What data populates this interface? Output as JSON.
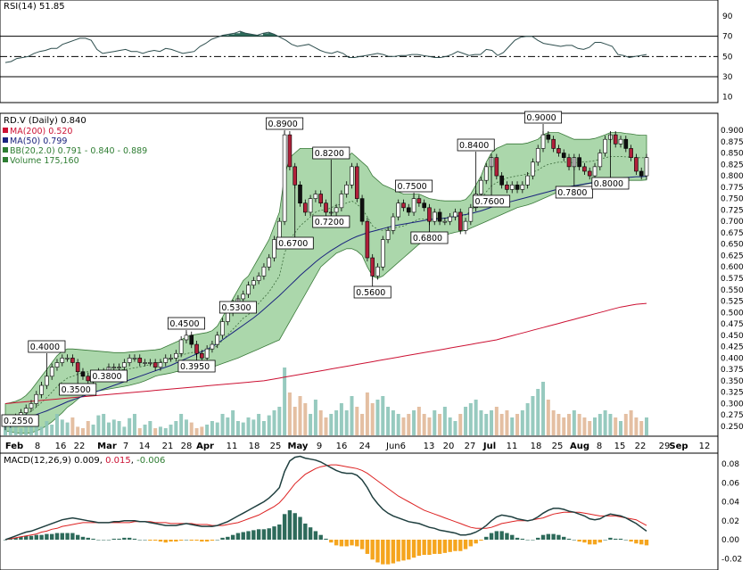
{
  "rsi_panel": {
    "label": "RSI(14)",
    "value": "51.85",
    "ticks": [
      90,
      70,
      50,
      30,
      10
    ],
    "series": [
      44,
      45,
      48,
      49,
      50,
      53,
      55,
      56,
      58,
      58,
      62,
      64,
      66,
      68,
      68,
      66,
      57,
      53,
      54,
      55,
      56,
      57,
      55,
      55,
      53,
      55,
      56,
      55,
      58,
      57,
      55,
      53,
      54,
      55,
      60,
      63,
      67,
      69,
      71,
      72,
      73,
      75,
      73,
      72,
      71,
      73,
      74,
      72,
      69,
      66,
      62,
      60,
      61,
      62,
      59,
      56,
      54,
      53,
      55,
      53,
      49,
      49,
      50,
      51,
      52,
      53,
      52,
      50,
      50,
      51,
      51,
      52,
      52,
      51,
      50,
      49,
      49,
      50,
      52,
      55,
      53,
      51,
      52,
      52,
      57,
      56,
      51,
      54,
      60,
      66,
      69,
      70,
      70,
      66,
      63,
      62,
      61,
      60,
      61,
      61,
      58,
      57,
      59,
      64,
      64,
      62,
      60,
      52,
      51,
      49,
      50,
      51,
      52
    ]
  },
  "price_panel": {
    "symbol_label": "RD.V (Daily)",
    "last": "0.840",
    "legend": [
      {
        "name": "MA(200)",
        "value": "0.520",
        "color": "#cc1133"
      },
      {
        "name": "MA(50)",
        "value": "0.799",
        "color": "#1a237e"
      },
      {
        "name": "BB(20,2.0)",
        "value": "0.791 - 0.840 - 0.889",
        "color": "#2e7d32"
      },
      {
        "name": "Volume",
        "value": "175,160",
        "color": "#2e7d32"
      }
    ],
    "ticks": [
      "0.900",
      "0.875",
      "0.850",
      "0.825",
      "0.800",
      "0.775",
      "0.750",
      "0.725",
      "0.700",
      "0.675",
      "0.650",
      "0.625",
      "0.600",
      "0.575",
      "0.550",
      "0.525",
      "0.500",
      "0.475",
      "0.450",
      "0.425",
      "0.400",
      "0.375",
      "0.350",
      "0.325",
      "0.300",
      "0.275",
      "0.250"
    ],
    "annotations": [
      "0.2550",
      "0.4000",
      "0.3500",
      "0.3800",
      "0.4500",
      "0.3950",
      "0.5300",
      "0.8900",
      "0.6700",
      "0.8200",
      "0.7200",
      "0.5600",
      "0.7500",
      "0.6800",
      "0.8400",
      "0.7600",
      "0.9000",
      "0.7800",
      "0.8000"
    ]
  },
  "x_axis": {
    "labels": [
      "Feb",
      "8",
      "16",
      "22",
      "Mar",
      "7",
      "14",
      "21",
      "28",
      "Apr",
      "11",
      "18",
      "25",
      "May",
      "9",
      "16",
      "24",
      "Jun6",
      "13",
      "20",
      "27",
      "Jul",
      "11",
      "18",
      "25",
      "Aug",
      "8",
      "15",
      "22",
      "29",
      "Sep",
      "12"
    ]
  },
  "macd_panel": {
    "label": "MACD(12,26,9)",
    "values": [
      "0.009",
      "0.015",
      "-0.006"
    ],
    "ticks": [
      "0.08",
      "0.06",
      "0.04",
      "0.02",
      "0.00",
      "-0.02"
    ]
  },
  "chart_data": {
    "type": "line",
    "ylim": [
      0.24,
      0.92
    ],
    "close": [
      0.255,
      0.26,
      0.27,
      0.28,
      0.29,
      0.3,
      0.32,
      0.34,
      0.36,
      0.38,
      0.39,
      0.4,
      0.4,
      0.39,
      0.37,
      0.36,
      0.35,
      0.36,
      0.37,
      0.37,
      0.38,
      0.38,
      0.38,
      0.39,
      0.4,
      0.4,
      0.39,
      0.39,
      0.39,
      0.38,
      0.39,
      0.4,
      0.4,
      0.41,
      0.44,
      0.45,
      0.43,
      0.41,
      0.4,
      0.42,
      0.43,
      0.45,
      0.48,
      0.5,
      0.52,
      0.53,
      0.54,
      0.56,
      0.57,
      0.58,
      0.6,
      0.62,
      0.66,
      0.7,
      0.89,
      0.82,
      0.78,
      0.74,
      0.72,
      0.75,
      0.76,
      0.74,
      0.72,
      0.72,
      0.73,
      0.76,
      0.78,
      0.82,
      0.75,
      0.7,
      0.62,
      0.58,
      0.6,
      0.66,
      0.68,
      0.71,
      0.74,
      0.73,
      0.72,
      0.75,
      0.74,
      0.73,
      0.7,
      0.72,
      0.7,
      0.7,
      0.71,
      0.72,
      0.68,
      0.7,
      0.73,
      0.76,
      0.79,
      0.82,
      0.84,
      0.8,
      0.78,
      0.77,
      0.78,
      0.77,
      0.78,
      0.8,
      0.83,
      0.86,
      0.89,
      0.88,
      0.86,
      0.85,
      0.84,
      0.82,
      0.84,
      0.82,
      0.81,
      0.8,
      0.82,
      0.85,
      0.88,
      0.89,
      0.87,
      0.88,
      0.86,
      0.84,
      0.81,
      0.8,
      0.84
    ],
    "ma50": [
      0.26,
      0.262,
      0.264,
      0.267,
      0.27,
      0.273,
      0.276,
      0.28,
      0.284,
      0.289,
      0.294,
      0.299,
      0.304,
      0.308,
      0.312,
      0.316,
      0.32,
      0.324,
      0.328,
      0.332,
      0.336,
      0.34,
      0.344,
      0.348,
      0.352,
      0.356,
      0.36,
      0.364,
      0.368,
      0.372,
      0.376,
      0.38,
      0.384,
      0.389,
      0.394,
      0.399,
      0.404,
      0.409,
      0.414,
      0.419,
      0.425,
      0.432,
      0.44,
      0.448,
      0.456,
      0.464,
      0.472,
      0.48,
      0.488,
      0.497,
      0.507,
      0.517,
      0.527,
      0.537,
      0.548,
      0.559,
      0.57,
      0.581,
      0.591,
      0.601,
      0.611,
      0.62,
      0.628,
      0.636,
      0.643,
      0.65,
      0.656,
      0.662,
      0.667,
      0.671,
      0.675,
      0.678,
      0.681,
      0.684,
      0.687,
      0.69,
      0.692,
      0.694,
      0.696,
      0.698,
      0.7,
      0.702,
      0.704,
      0.705,
      0.706,
      0.707,
      0.709,
      0.711,
      0.713,
      0.715,
      0.717,
      0.72,
      0.723,
      0.727,
      0.731,
      0.735,
      0.738,
      0.741,
      0.744,
      0.747,
      0.75,
      0.753,
      0.756,
      0.759,
      0.762,
      0.765,
      0.768,
      0.771,
      0.774,
      0.776,
      0.778,
      0.78,
      0.782,
      0.784,
      0.786,
      0.788,
      0.79,
      0.792,
      0.794,
      0.795,
      0.796,
      0.797,
      0.798,
      0.798,
      0.799
    ],
    "ma200": [
      0.3,
      0.301,
      0.302,
      0.303,
      0.304,
      0.305,
      0.306,
      0.307,
      0.308,
      0.309,
      0.31,
      0.311,
      0.312,
      0.313,
      0.314,
      0.315,
      0.316,
      0.317,
      0.318,
      0.319,
      0.32,
      0.321,
      0.322,
      0.323,
      0.324,
      0.325,
      0.326,
      0.327,
      0.328,
      0.329,
      0.33,
      0.331,
      0.332,
      0.333,
      0.334,
      0.335,
      0.336,
      0.337,
      0.338,
      0.339,
      0.34,
      0.341,
      0.342,
      0.343,
      0.344,
      0.345,
      0.346,
      0.347,
      0.348,
      0.349,
      0.35,
      0.352,
      0.354,
      0.356,
      0.358,
      0.36,
      0.362,
      0.364,
      0.366,
      0.368,
      0.37,
      0.372,
      0.374,
      0.376,
      0.378,
      0.38,
      0.382,
      0.384,
      0.386,
      0.388,
      0.39,
      0.392,
      0.394,
      0.396,
      0.398,
      0.4,
      0.402,
      0.404,
      0.406,
      0.408,
      0.41,
      0.412,
      0.414,
      0.416,
      0.418,
      0.42,
      0.422,
      0.424,
      0.426,
      0.428,
      0.43,
      0.432,
      0.434,
      0.436,
      0.438,
      0.44,
      0.443,
      0.446,
      0.449,
      0.452,
      0.455,
      0.458,
      0.461,
      0.464,
      0.467,
      0.47,
      0.473,
      0.476,
      0.479,
      0.482,
      0.485,
      0.488,
      0.491,
      0.494,
      0.497,
      0.5,
      0.503,
      0.506,
      0.509,
      0.512,
      0.514,
      0.516,
      0.518,
      0.519,
      0.52
    ],
    "bb_upper": [
      0.3,
      0.302,
      0.305,
      0.31,
      0.318,
      0.33,
      0.345,
      0.36,
      0.375,
      0.39,
      0.405,
      0.415,
      0.42,
      0.42,
      0.419,
      0.418,
      0.417,
      0.416,
      0.415,
      0.414,
      0.413,
      0.412,
      0.412,
      0.412,
      0.413,
      0.414,
      0.415,
      0.416,
      0.417,
      0.418,
      0.42,
      0.425,
      0.43,
      0.435,
      0.44,
      0.446,
      0.45,
      0.452,
      0.454,
      0.456,
      0.46,
      0.47,
      0.49,
      0.51,
      0.53,
      0.55,
      0.57,
      0.58,
      0.6,
      0.62,
      0.64,
      0.66,
      0.69,
      0.72,
      0.8,
      0.84,
      0.85,
      0.86,
      0.86,
      0.86,
      0.86,
      0.85,
      0.84,
      0.84,
      0.84,
      0.84,
      0.84,
      0.85,
      0.84,
      0.83,
      0.82,
      0.8,
      0.79,
      0.78,
      0.775,
      0.77,
      0.765,
      0.76,
      0.76,
      0.76,
      0.76,
      0.755,
      0.75,
      0.748,
      0.746,
      0.745,
      0.745,
      0.745,
      0.745,
      0.748,
      0.76,
      0.78,
      0.8,
      0.83,
      0.85,
      0.86,
      0.865,
      0.87,
      0.87,
      0.87,
      0.87,
      0.872,
      0.876,
      0.88,
      0.89,
      0.895,
      0.895,
      0.895,
      0.89,
      0.885,
      0.88,
      0.88,
      0.88,
      0.88,
      0.882,
      0.886,
      0.89,
      0.895,
      0.895,
      0.895,
      0.893,
      0.892,
      0.89,
      0.889,
      0.889
    ],
    "bb_lower": [
      0.24,
      0.238,
      0.236,
      0.235,
      0.235,
      0.236,
      0.24,
      0.245,
      0.252,
      0.26,
      0.27,
      0.28,
      0.292,
      0.3,
      0.31,
      0.318,
      0.323,
      0.326,
      0.328,
      0.33,
      0.332,
      0.334,
      0.336,
      0.338,
      0.34,
      0.343,
      0.346,
      0.35,
      0.355,
      0.36,
      0.363,
      0.365,
      0.367,
      0.37,
      0.372,
      0.373,
      0.374,
      0.375,
      0.376,
      0.378,
      0.38,
      0.384,
      0.388,
      0.392,
      0.396,
      0.4,
      0.405,
      0.41,
      0.415,
      0.42,
      0.425,
      0.43,
      0.435,
      0.44,
      0.46,
      0.48,
      0.5,
      0.52,
      0.54,
      0.56,
      0.58,
      0.6,
      0.61,
      0.62,
      0.63,
      0.635,
      0.64,
      0.64,
      0.635,
      0.625,
      0.6,
      0.58,
      0.575,
      0.58,
      0.59,
      0.6,
      0.61,
      0.62,
      0.63,
      0.64,
      0.65,
      0.655,
      0.66,
      0.665,
      0.668,
      0.67,
      0.673,
      0.676,
      0.678,
      0.68,
      0.685,
      0.69,
      0.695,
      0.7,
      0.705,
      0.71,
      0.715,
      0.72,
      0.725,
      0.73,
      0.733,
      0.736,
      0.74,
      0.745,
      0.75,
      0.755,
      0.76,
      0.765,
      0.77,
      0.775,
      0.777,
      0.779,
      0.781,
      0.783,
      0.785,
      0.787,
      0.789,
      0.79,
      0.79,
      0.79,
      0.79,
      0.79,
      0.79,
      0.79,
      0.791
    ],
    "macd": [
      0.0,
      0.002,
      0.004,
      0.006,
      0.008,
      0.009,
      0.011,
      0.013,
      0.015,
      0.017,
      0.019,
      0.021,
      0.022,
      0.023,
      0.022,
      0.021,
      0.02,
      0.019,
      0.018,
      0.018,
      0.018,
      0.019,
      0.019,
      0.02,
      0.02,
      0.02,
      0.019,
      0.019,
      0.018,
      0.017,
      0.016,
      0.015,
      0.015,
      0.015,
      0.016,
      0.017,
      0.016,
      0.015,
      0.014,
      0.014,
      0.014,
      0.015,
      0.017,
      0.019,
      0.022,
      0.025,
      0.028,
      0.031,
      0.034,
      0.037,
      0.04,
      0.044,
      0.049,
      0.055,
      0.072,
      0.083,
      0.087,
      0.088,
      0.086,
      0.085,
      0.084,
      0.082,
      0.079,
      0.076,
      0.073,
      0.071,
      0.07,
      0.07,
      0.068,
      0.063,
      0.055,
      0.045,
      0.038,
      0.032,
      0.028,
      0.025,
      0.023,
      0.021,
      0.019,
      0.018,
      0.017,
      0.015,
      0.013,
      0.012,
      0.01,
      0.009,
      0.008,
      0.007,
      0.005,
      0.005,
      0.006,
      0.008,
      0.011,
      0.015,
      0.02,
      0.024,
      0.026,
      0.025,
      0.024,
      0.022,
      0.021,
      0.02,
      0.021,
      0.024,
      0.028,
      0.031,
      0.033,
      0.033,
      0.032,
      0.03,
      0.029,
      0.027,
      0.025,
      0.022,
      0.021,
      0.022,
      0.025,
      0.027,
      0.026,
      0.025,
      0.023,
      0.02,
      0.017,
      0.013,
      0.009
    ],
    "signal": [
      0.0,
      0.001,
      0.002,
      0.003,
      0.004,
      0.005,
      0.006,
      0.008,
      0.009,
      0.011,
      0.012,
      0.014,
      0.015,
      0.016,
      0.017,
      0.018,
      0.018,
      0.018,
      0.018,
      0.018,
      0.018,
      0.018,
      0.018,
      0.018,
      0.018,
      0.019,
      0.019,
      0.019,
      0.019,
      0.018,
      0.018,
      0.018,
      0.017,
      0.017,
      0.017,
      0.017,
      0.017,
      0.016,
      0.016,
      0.016,
      0.015,
      0.015,
      0.015,
      0.016,
      0.017,
      0.018,
      0.02,
      0.022,
      0.024,
      0.026,
      0.029,
      0.032,
      0.035,
      0.039,
      0.045,
      0.052,
      0.059,
      0.064,
      0.069,
      0.072,
      0.075,
      0.077,
      0.078,
      0.079,
      0.079,
      0.078,
      0.077,
      0.076,
      0.075,
      0.073,
      0.07,
      0.066,
      0.062,
      0.058,
      0.054,
      0.05,
      0.046,
      0.043,
      0.04,
      0.037,
      0.034,
      0.031,
      0.029,
      0.027,
      0.025,
      0.023,
      0.021,
      0.019,
      0.017,
      0.015,
      0.013,
      0.012,
      0.012,
      0.012,
      0.013,
      0.015,
      0.017,
      0.018,
      0.019,
      0.02,
      0.02,
      0.02,
      0.021,
      0.022,
      0.023,
      0.025,
      0.027,
      0.028,
      0.029,
      0.029,
      0.029,
      0.029,
      0.028,
      0.027,
      0.026,
      0.025,
      0.025,
      0.025,
      0.025,
      0.024,
      0.023,
      0.022,
      0.021,
      0.018,
      0.015
    ],
    "volume_levels": [
      0.2,
      0.15,
      0.22,
      0.1,
      0.3,
      0.18,
      0.25,
      0.12,
      0.2,
      0.15,
      0.3,
      0.22,
      0.18,
      0.25,
      0.12,
      0.1,
      0.2,
      0.15,
      0.28,
      0.3,
      0.18,
      0.22,
      0.2,
      0.12,
      0.24,
      0.3,
      0.1,
      0.15,
      0.2,
      0.1,
      0.12,
      0.1,
      0.15,
      0.2,
      0.3,
      0.22,
      0.18,
      0.1,
      0.12,
      0.15,
      0.2,
      0.18,
      0.3,
      0.25,
      0.35,
      0.2,
      0.18,
      0.25,
      0.22,
      0.3,
      0.2,
      0.28,
      0.35,
      0.4,
      0.95,
      0.6,
      0.4,
      0.55,
      0.45,
      0.3,
      0.5,
      0.35,
      0.25,
      0.3,
      0.35,
      0.45,
      0.35,
      0.55,
      0.4,
      0.3,
      0.6,
      0.45,
      0.5,
      0.55,
      0.4,
      0.35,
      0.3,
      0.25,
      0.3,
      0.35,
      0.4,
      0.3,
      0.25,
      0.35,
      0.3,
      0.4,
      0.25,
      0.2,
      0.3,
      0.4,
      0.45,
      0.5,
      0.35,
      0.3,
      0.35,
      0.4,
      0.3,
      0.35,
      0.25,
      0.3,
      0.35,
      0.45,
      0.55,
      0.65,
      0.75,
      0.5,
      0.35,
      0.3,
      0.25,
      0.3,
      0.35,
      0.3,
      0.25,
      0.2,
      0.25,
      0.3,
      0.35,
      0.3,
      0.25,
      0.2,
      0.3,
      0.35,
      0.25,
      0.2,
      0.25
    ]
  }
}
